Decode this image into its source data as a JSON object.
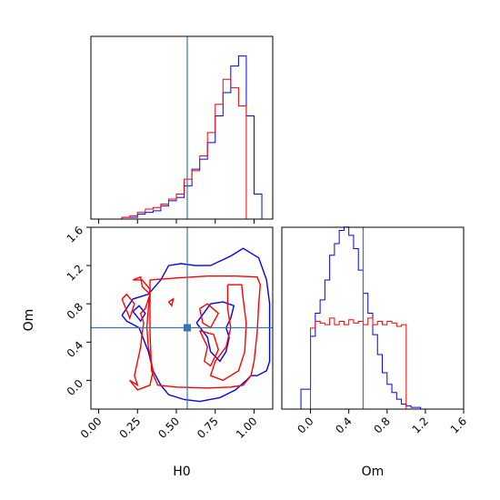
{
  "chart_data": {
    "type": "corner",
    "parameters": [
      "H0",
      "Om"
    ],
    "truth": {
      "H0": 0.57,
      "Om": 0.55
    },
    "truth_color": "#3b75af",
    "series_colors": {
      "blue": "#0000ff",
      "red": "#ff0000"
    },
    "xlabel": "H0",
    "ylabel_2d": "Om",
    "xlabel_2": "Om",
    "h0_range": [
      -0.05,
      1.12
    ],
    "om_range": [
      -0.3,
      1.6
    ],
    "h0_ticks": [
      "0.00",
      "0.25",
      "0.50",
      "0.75",
      "1.00"
    ],
    "h0_tick_values": [
      0.0,
      0.25,
      0.5,
      0.75,
      1.0
    ],
    "om_ticks": [
      "0.0",
      "0.4",
      "0.8",
      "1.2",
      "1.6"
    ],
    "om_tick_values": [
      0.0,
      0.4,
      0.8,
      1.2,
      1.6
    ],
    "hist_h0": {
      "edges": [
        0.0,
        0.05,
        0.1,
        0.15,
        0.2,
        0.25,
        0.3,
        0.35,
        0.4,
        0.45,
        0.5,
        0.55,
        0.6,
        0.65,
        0.7,
        0.75,
        0.8,
        0.85,
        0.9,
        0.95,
        1.0,
        1.05,
        1.1
      ],
      "blue": [
        0,
        0,
        0,
        0.01,
        0.01,
        0.03,
        0.04,
        0.05,
        0.08,
        0.11,
        0.13,
        0.2,
        0.3,
        0.36,
        0.46,
        0.62,
        0.76,
        0.92,
        0.98,
        0.62,
        0.15,
        0
      ],
      "red": [
        0,
        0,
        0,
        0.01,
        0.02,
        0.04,
        0.06,
        0.07,
        0.09,
        0.12,
        0.15,
        0.24,
        0.29,
        0.38,
        0.52,
        0.69,
        0.84,
        0.79,
        0.68,
        0,
        0,
        0
      ]
    },
    "hist_om": {
      "edges": [
        -0.1,
        0.0,
        0.05,
        0.1,
        0.15,
        0.2,
        0.25,
        0.3,
        0.35,
        0.4,
        0.45,
        0.5,
        0.55,
        0.6,
        0.65,
        0.7,
        0.75,
        0.8,
        0.85,
        0.9,
        0.95,
        1.0,
        1.05,
        1.1,
        1.15,
        1.2,
        1.25,
        1.3,
        1.35
      ],
      "blue": [
        0.12,
        0.44,
        0.58,
        0.66,
        0.78,
        0.93,
        1.0,
        1.08,
        1.1,
        1.05,
        0.97,
        0.84,
        0.7,
        0.58,
        0.45,
        0.33,
        0.22,
        0.15,
        0.1,
        0.06,
        0.03,
        0.02,
        0.01,
        0.01,
        0.0,
        0.0,
        0.0,
        0.0
      ],
      "red": [
        0.0,
        0.49,
        0.53,
        0.52,
        0.51,
        0.55,
        0.51,
        0.53,
        0.51,
        0.54,
        0.52,
        0.53,
        0.51,
        0.55,
        0.51,
        0.53,
        0.51,
        0.53,
        0.52,
        0.5,
        0.51,
        0.0,
        0.0,
        0.0,
        0.0,
        0.0,
        0.0,
        0.0
      ]
    },
    "contours_2d": {
      "blue": [
        [
          [
            0.15,
            0.68
          ],
          [
            0.22,
            0.85
          ],
          [
            0.32,
            0.9
          ],
          [
            0.4,
            1.05
          ],
          [
            0.45,
            1.2
          ],
          [
            0.53,
            1.22
          ],
          [
            0.62,
            1.2
          ],
          [
            0.72,
            1.2
          ],
          [
            0.85,
            1.3
          ],
          [
            0.93,
            1.38
          ],
          [
            1.03,
            1.28
          ],
          [
            1.08,
            1.05
          ],
          [
            1.1,
            0.8
          ],
          [
            1.1,
            0.2
          ],
          [
            1.08,
            0.1
          ],
          [
            1.02,
            0.05
          ],
          [
            0.98,
            0.05
          ],
          [
            0.95,
            0.0
          ],
          [
            0.88,
            -0.1
          ],
          [
            0.78,
            -0.18
          ],
          [
            0.65,
            -0.22
          ],
          [
            0.55,
            -0.2
          ],
          [
            0.45,
            -0.15
          ],
          [
            0.4,
            -0.05
          ],
          [
            0.35,
            0.1
          ],
          [
            0.32,
            0.3
          ],
          [
            0.26,
            0.55
          ],
          [
            0.18,
            0.62
          ],
          [
            0.15,
            0.68
          ]
        ],
        [
          [
            0.63,
            0.6
          ],
          [
            0.72,
            0.8
          ],
          [
            0.8,
            0.82
          ],
          [
            0.87,
            0.78
          ],
          [
            0.85,
            0.65
          ],
          [
            0.82,
            0.55
          ],
          [
            0.84,
            0.45
          ],
          [
            0.82,
            0.3
          ],
          [
            0.78,
            0.2
          ],
          [
            0.72,
            0.3
          ],
          [
            0.7,
            0.45
          ],
          [
            0.63,
            0.6
          ]
        ],
        [
          [
            0.22,
            0.72
          ],
          [
            0.26,
            0.78
          ],
          [
            0.3,
            0.7
          ],
          [
            0.27,
            0.62
          ],
          [
            0.22,
            0.72
          ]
        ]
      ],
      "red": [
        [
          [
            0.33,
            1.05
          ],
          [
            0.5,
            1.07
          ],
          [
            0.7,
            1.09
          ],
          [
            0.88,
            1.09
          ],
          [
            1.02,
            1.08
          ],
          [
            1.04,
            1.0
          ],
          [
            1.03,
            0.8
          ],
          [
            1.02,
            0.5
          ],
          [
            1.0,
            0.2
          ],
          [
            0.98,
            0.05
          ],
          [
            0.93,
            -0.05
          ],
          [
            0.85,
            -0.07
          ],
          [
            0.7,
            -0.08
          ],
          [
            0.5,
            -0.07
          ],
          [
            0.38,
            -0.05
          ],
          [
            0.34,
            0.1
          ],
          [
            0.33,
            0.5
          ],
          [
            0.33,
            0.8
          ],
          [
            0.33,
            1.05
          ]
        ],
        [
          [
            0.22,
            1.05
          ],
          [
            0.27,
            1.08
          ],
          [
            0.28,
            0.98
          ],
          [
            0.33,
            0.9
          ],
          [
            0.3,
            0.75
          ],
          [
            0.27,
            0.7
          ],
          [
            0.29,
            0.6
          ],
          [
            0.28,
            0.5
          ],
          [
            0.27,
            0.35
          ],
          [
            0.25,
            0.2
          ],
          [
            0.23,
            0.05
          ],
          [
            0.25,
            -0.05
          ],
          [
            0.2,
            0.0
          ],
          [
            0.25,
            -0.1
          ],
          [
            0.33,
            -0.05
          ],
          [
            0.35,
            0.1
          ],
          [
            0.32,
            0.35
          ],
          [
            0.31,
            0.55
          ],
          [
            0.32,
            0.75
          ],
          [
            0.33,
            0.95
          ],
          [
            0.28,
            1.05
          ],
          [
            0.22,
            1.05
          ]
        ],
        [
          [
            0.15,
            0.85
          ],
          [
            0.2,
            0.65
          ],
          [
            0.23,
            0.8
          ],
          [
            0.18,
            0.9
          ],
          [
            0.15,
            0.85
          ]
        ],
        [
          [
            0.83,
            1.0
          ],
          [
            0.92,
            1.0
          ],
          [
            0.93,
            0.85
          ],
          [
            0.95,
            0.6
          ],
          [
            0.94,
            0.3
          ],
          [
            0.9,
            0.1
          ],
          [
            0.8,
            0.0
          ],
          [
            0.72,
            0.05
          ],
          [
            0.75,
            0.2
          ],
          [
            0.82,
            0.35
          ],
          [
            0.85,
            0.55
          ],
          [
            0.83,
            0.75
          ],
          [
            0.83,
            1.0
          ]
        ],
        [
          [
            0.65,
            0.75
          ],
          [
            0.7,
            0.8
          ],
          [
            0.77,
            0.7
          ],
          [
            0.72,
            0.55
          ],
          [
            0.67,
            0.6
          ],
          [
            0.65,
            0.75
          ]
        ],
        [
          [
            0.45,
            0.82
          ],
          [
            0.48,
            0.85
          ],
          [
            0.47,
            0.78
          ],
          [
            0.45,
            0.82
          ]
        ],
        [
          [
            0.65,
            0.52
          ],
          [
            0.74,
            0.48
          ],
          [
            0.77,
            0.32
          ],
          [
            0.72,
            0.15
          ],
          [
            0.68,
            0.2
          ],
          [
            0.7,
            0.35
          ],
          [
            0.65,
            0.52
          ]
        ]
      ]
    }
  }
}
